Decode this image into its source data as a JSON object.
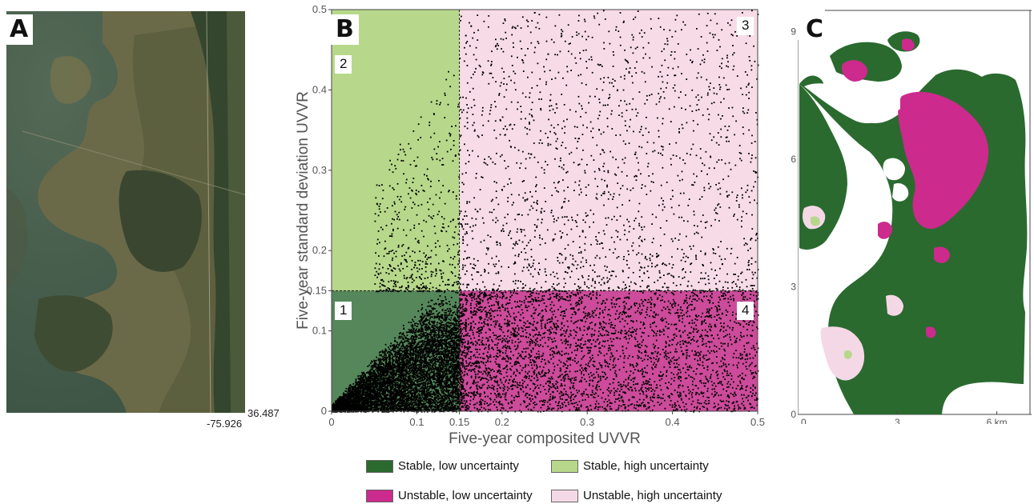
{
  "panel_a": {
    "letter": "A",
    "lat_label": "36.487",
    "lon_label": "-75.926"
  },
  "panel_b": {
    "letter": "B",
    "quadrant_labels": [
      "1",
      "2",
      "3",
      "4"
    ],
    "threshold_label": "0.15"
  },
  "panel_c": {
    "letter": "C",
    "colors": {
      "stable_low": "#2a6a2f",
      "stable_high": "#b7d88a",
      "unstable_low": "#cc2a8c",
      "unstable_high": "#f5d8e6"
    }
  },
  "chart_data": [
    {
      "type": "scatter",
      "title": "",
      "xlabel": "Five-year composited UVVR",
      "ylabel": "Five-year standard deviation UVVR",
      "xlim": [
        0,
        0.5
      ],
      "ylim": [
        0,
        0.5
      ],
      "x_ticks": [
        "0",
        "0.1",
        "0.15",
        "0.2",
        "0.3",
        "0.4",
        "0.5"
      ],
      "y_ticks": [
        "0",
        "0.1",
        "0.15",
        "0.2",
        "0.3",
        "0.4",
        "0.5"
      ],
      "thresholds": {
        "x": 0.15,
        "y": 0.15
      },
      "regions": [
        {
          "id": "1",
          "x": [
            0,
            0.15
          ],
          "y": [
            0,
            0.15
          ],
          "color": "#55875a"
        },
        {
          "id": "2",
          "x": [
            0,
            0.15
          ],
          "y": [
            0.15,
            0.5
          ],
          "color": "#b7d88a"
        },
        {
          "id": "3",
          "x": [
            0.15,
            0.5
          ],
          "y": [
            0.15,
            0.5
          ],
          "color": "#f7dce8"
        },
        {
          "id": "4",
          "x": [
            0.15,
            0.5
          ],
          "y": [
            0,
            0.15
          ],
          "color": "#cc4b9a"
        }
      ],
      "point_color": "#000000"
    },
    {
      "type": "heatmap",
      "x_ticks": [
        "0",
        "3",
        "6 km"
      ],
      "y_ticks": [
        "0",
        "3",
        "6",
        "9"
      ],
      "xlim": [
        0,
        7
      ],
      "ylim": [
        0,
        9.5
      ]
    }
  ],
  "legend": {
    "items": [
      {
        "label": "Stable, low uncertainty",
        "color": "#2a6a2f"
      },
      {
        "label": "Stable, high uncertainty",
        "color": "#b7d88a"
      },
      {
        "label": "Unstable, low uncertainty",
        "color": "#cc2a8c"
      },
      {
        "label": "Unstable, high uncertainty",
        "color": "#f5d8e6"
      }
    ]
  }
}
